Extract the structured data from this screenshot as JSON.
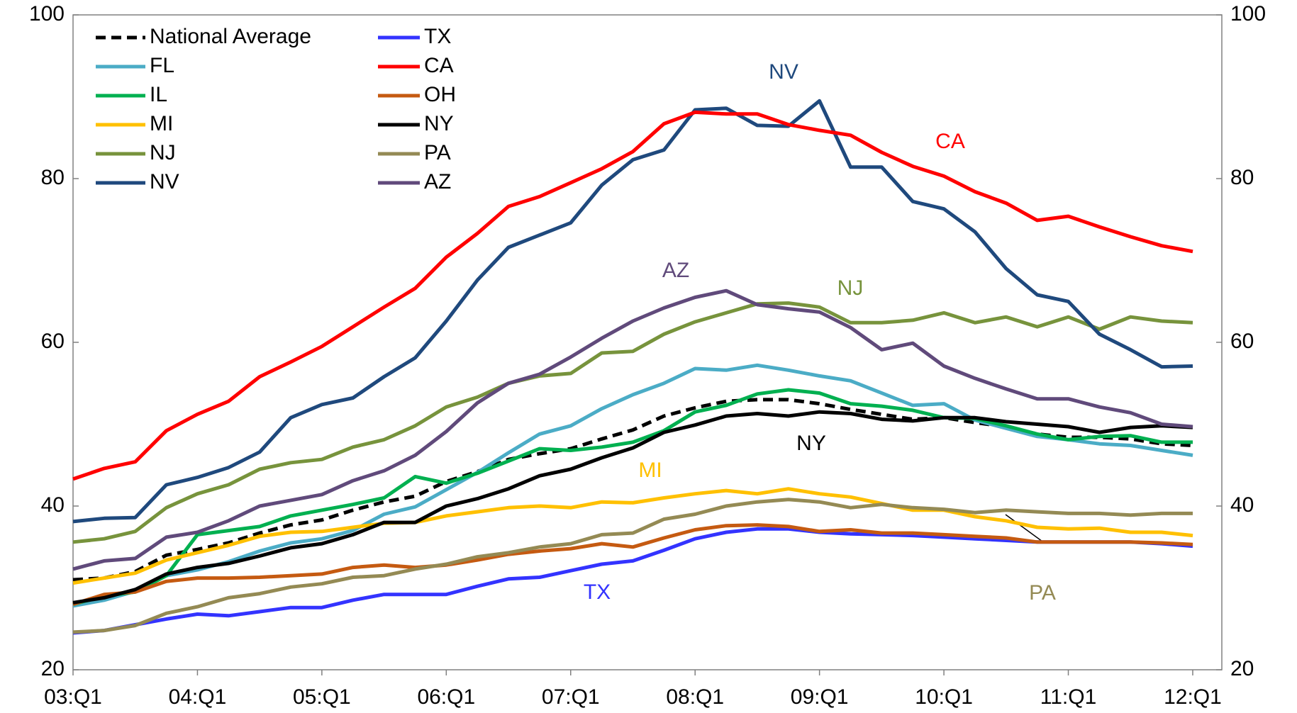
{
  "chart_data": {
    "type": "line",
    "categories": [
      "03:Q1",
      null,
      null,
      null,
      "04:Q1",
      null,
      null,
      null,
      "05:Q1",
      null,
      null,
      null,
      "06:Q1",
      null,
      null,
      null,
      "07:Q1",
      null,
      null,
      null,
      "08:Q1",
      null,
      null,
      null,
      "09:Q1",
      null,
      null,
      null,
      "10:Q1",
      null,
      null,
      null,
      "11:Q1",
      null,
      null,
      null,
      "12:Q1"
    ],
    "ylim": [
      20,
      100
    ],
    "yticks": [
      20,
      40,
      60,
      80,
      100
    ],
    "y2lim": [
      20,
      100
    ],
    "y2ticks": [
      20,
      40,
      60,
      80,
      100
    ],
    "grid": false,
    "legend": "upper left",
    "series": [
      {
        "name": "National Average",
        "color": "#000000",
        "style": "dashed",
        "values": [
          31,
          31.2,
          32,
          34,
          34.7,
          35.5,
          36.7,
          37.7,
          38.3,
          39.5,
          40.5,
          41.2,
          43,
          44.2,
          45.7,
          46.4,
          47,
          48.2,
          49.3,
          51,
          52,
          52.8,
          53,
          53,
          52.5,
          51.8,
          51.2,
          50.6,
          50.8,
          50.2,
          49.7,
          48.8,
          48.4,
          48.4,
          48.2,
          47.6,
          47.4
        ]
      },
      {
        "name": "FL",
        "color": "#4bacc6",
        "values": [
          27.8,
          28.5,
          29.6,
          31.5,
          32.2,
          33.2,
          34.5,
          35.5,
          36,
          37,
          39,
          39.9,
          42,
          44.1,
          46.5,
          48.8,
          49.8,
          51.9,
          53.6,
          55,
          56.8,
          56.6,
          57.2,
          56.6,
          55.9,
          55.3,
          53.8,
          52.3,
          52.5,
          50.5,
          49.5,
          48.5,
          48.1,
          47.6,
          47.4,
          46.8,
          46.2
        ]
      },
      {
        "name": "IL",
        "color": "#00b050",
        "values": [
          28,
          29,
          29.5,
          31.5,
          36.5,
          37,
          37.5,
          38.8,
          39.5,
          40.2,
          41,
          43.6,
          42.8,
          44,
          45.5,
          47,
          46.8,
          47.2,
          47.8,
          49.2,
          51.5,
          52.3,
          53.7,
          54.2,
          53.8,
          52.5,
          52.2,
          51.7,
          50.8,
          50.7,
          49.8,
          48.8,
          48.1,
          48.5,
          48.6,
          47.8,
          47.8
        ]
      },
      {
        "name": "MI",
        "color": "#ffc000",
        "values": [
          30.6,
          31.2,
          31.8,
          33.4,
          34.3,
          35.2,
          36.3,
          36.8,
          36.9,
          37.4,
          37.9,
          38,
          38.8,
          39.3,
          39.8,
          40,
          39.8,
          40.5,
          40.4,
          41,
          41.5,
          41.9,
          41.5,
          42.1,
          41.5,
          41.1,
          40.3,
          39.5,
          39.5,
          38.7,
          38.2,
          37.4,
          37.2,
          37.3,
          36.8,
          36.8,
          36.4
        ]
      },
      {
        "name": "NJ",
        "color": "#77933c",
        "values": [
          35.6,
          36,
          36.9,
          39.8,
          41.5,
          42.6,
          44.5,
          45.3,
          45.7,
          47.2,
          48.1,
          49.8,
          52.1,
          53.3,
          55,
          55.9,
          56.2,
          58.7,
          58.9,
          61,
          62.5,
          63.6,
          64.7,
          64.8,
          64.3,
          62.4,
          62.4,
          62.7,
          63.6,
          62.4,
          63.1,
          61.9,
          63.1,
          61.6,
          63.1,
          62.6,
          62.4
        ]
      },
      {
        "name": "NV",
        "color": "#1f497d",
        "values": [
          38.1,
          38.5,
          38.6,
          42.6,
          43.5,
          44.7,
          46.6,
          50.8,
          52.4,
          53.2,
          55.8,
          58.1,
          62.6,
          67.6,
          71.6,
          73.1,
          74.6,
          79.2,
          82.3,
          83.5,
          88.4,
          88.6,
          86.5,
          86.4,
          89.5,
          81.4,
          81.4,
          77.2,
          76.3,
          73.5,
          69,
          65.8,
          65,
          61,
          59.1,
          57,
          57.1
        ]
      },
      {
        "name": "TX",
        "color": "#3333ff",
        "values": [
          24.5,
          24.8,
          25.5,
          26.2,
          26.8,
          26.6,
          27.1,
          27.6,
          27.6,
          28.5,
          29.2,
          29.2,
          29.2,
          30.2,
          31.1,
          31.3,
          32.1,
          32.9,
          33.3,
          34.6,
          36,
          36.8,
          37.2,
          37.2,
          36.8,
          36.6,
          36.5,
          36.4,
          36.2,
          36,
          35.8,
          35.6,
          35.6,
          35.6,
          35.6,
          35.4,
          35.1
        ]
      },
      {
        "name": "CA",
        "color": "#ff0000",
        "values": [
          43.3,
          44.6,
          45.4,
          49.2,
          51.2,
          52.8,
          55.8,
          57.6,
          59.5,
          61.9,
          64.3,
          66.6,
          70.4,
          73.3,
          76.6,
          77.8,
          79.5,
          81.2,
          83.3,
          86.7,
          88.1,
          87.9,
          87.9,
          86.6,
          85.9,
          85.3,
          83.2,
          81.5,
          80.3,
          78.4,
          77,
          74.9,
          75.4,
          74.1,
          72.9,
          71.8,
          71.1
        ]
      },
      {
        "name": "OH",
        "color": "#c55a11",
        "values": [
          28,
          29.2,
          29.5,
          30.8,
          31.2,
          31.2,
          31.3,
          31.5,
          31.7,
          32.5,
          32.8,
          32.5,
          32.8,
          33.4,
          34.1,
          34.5,
          34.8,
          35.4,
          35,
          36.1,
          37.1,
          37.6,
          37.7,
          37.5,
          36.9,
          37.1,
          36.7,
          36.7,
          36.5,
          36.3,
          36.1,
          35.6,
          35.6,
          35.6,
          35.6,
          35.5,
          35.3
        ]
      },
      {
        "name": "NY",
        "color": "#000000",
        "values": [
          28.2,
          28.8,
          29.8,
          31.7,
          32.5,
          33,
          33.9,
          34.9,
          35.4,
          36.5,
          38,
          38,
          40,
          40.9,
          42.1,
          43.7,
          44.5,
          45.9,
          47.1,
          49,
          49.9,
          51,
          51.3,
          51,
          51.5,
          51.3,
          50.6,
          50.4,
          50.8,
          50.8,
          50.3,
          50,
          49.7,
          49,
          49.6,
          49.8,
          49.6
        ]
      },
      {
        "name": "PA",
        "color": "#948a54",
        "values": [
          24.6,
          24.8,
          25.4,
          26.9,
          27.7,
          28.8,
          29.3,
          30.1,
          30.5,
          31.3,
          31.5,
          32.3,
          32.9,
          33.8,
          34.3,
          35,
          35.4,
          36.5,
          36.7,
          38.4,
          39,
          40,
          40.5,
          40.8,
          40.5,
          39.8,
          40.2,
          39.8,
          39.6,
          39.2,
          39.5,
          39.3,
          39.1,
          39.1,
          38.9,
          39.1,
          39.1
        ]
      },
      {
        "name": "AZ",
        "color": "#604a7b",
        "values": [
          32.3,
          33.3,
          33.6,
          36.2,
          36.8,
          38.2,
          40,
          40.7,
          41.4,
          43.1,
          44.3,
          46.2,
          49.1,
          52.6,
          55,
          56.1,
          58.2,
          60.5,
          62.6,
          64.2,
          65.5,
          66.3,
          64.6,
          64.1,
          63.7,
          61.8,
          59.1,
          59.9,
          57.1,
          55.6,
          54.3,
          53.1,
          53.1,
          52.1,
          51.4,
          50,
          49.7
        ]
      }
    ],
    "annotations": [
      "NV",
      "CA",
      "AZ",
      "NJ",
      "NY",
      "MI",
      "TX",
      "PA"
    ]
  }
}
